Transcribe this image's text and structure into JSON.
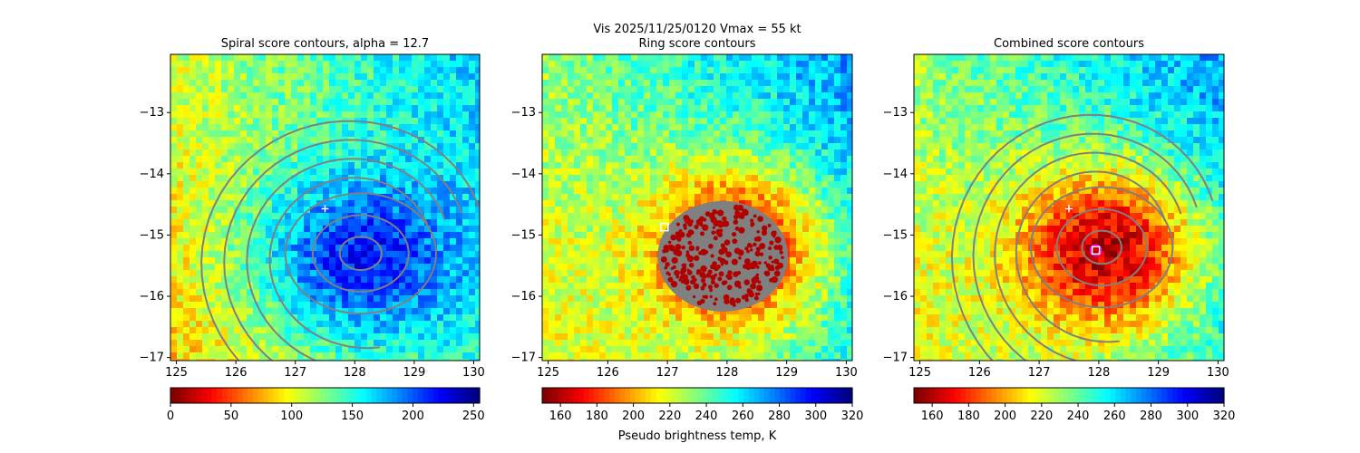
{
  "suptitle": "Vis  2025/11/25/0120    Vmax = 55 kt",
  "colorbar_label": "Pseudo brightness temp, K",
  "chart_data": [
    {
      "type": "heatmap",
      "title": "Spiral score contours, alpha = 12.7",
      "xlim": [
        124.9,
        130.1
      ],
      "ylim": [
        -17.05,
        -12.05
      ],
      "xticks": [
        "125",
        "126",
        "127",
        "128",
        "129",
        "130"
      ],
      "yticks": [
        "−13",
        "−14",
        "−15",
        "−16",
        "−17"
      ],
      "colormap": "jet_r",
      "background_level": 0.5,
      "center": [
        128.1,
        -15.3
      ],
      "storm_extent": [
        1.6,
        1.3
      ],
      "storm_level": 0.86,
      "grey_core": false,
      "contour_color": "#808080",
      "colorbar": {
        "ticks": [
          "0",
          "50",
          "100",
          "150",
          "200",
          "250"
        ],
        "range": [
          0,
          255
        ]
      },
      "markers": [
        {
          "kind": "plus",
          "x": 127.5,
          "y": -14.57,
          "color": "#ffffff"
        }
      ]
    },
    {
      "type": "heatmap",
      "title": "Ring score contours",
      "xlim": [
        124.9,
        130.1
      ],
      "ylim": [
        -17.05,
        -12.05
      ],
      "xticks": [
        "125",
        "126",
        "127",
        "128",
        "129",
        "130"
      ],
      "yticks": [
        "−13",
        "−14",
        "−15",
        "−16",
        "−17"
      ],
      "colormap": "jet_r",
      "background_level": 0.55,
      "center": [
        128.05,
        -15.2
      ],
      "storm_extent": [
        1.4,
        1.3
      ],
      "storm_level": 0.08,
      "grey_core": true,
      "grey_extent": [
        0.95,
        0.95
      ],
      "contour_color": "#808080",
      "colorbar": {
        "ticks": [
          "160",
          "180",
          "200",
          "220",
          "240",
          "260",
          "280",
          "300",
          "320"
        ],
        "range": [
          150,
          320
        ]
      },
      "markers": [
        {
          "kind": "square",
          "x": 126.95,
          "y": -14.87,
          "color": "#ffffff"
        }
      ]
    },
    {
      "type": "heatmap",
      "title": "Combined score contours",
      "xlim": [
        124.9,
        130.1
      ],
      "ylim": [
        -17.05,
        -12.05
      ],
      "xticks": [
        "125",
        "126",
        "127",
        "128",
        "129",
        "130"
      ],
      "yticks": [
        "−13",
        "−14",
        "−15",
        "−16",
        "−17"
      ],
      "colormap": "jet_r",
      "background_level": 0.55,
      "center": [
        128.05,
        -15.2
      ],
      "storm_extent": [
        1.5,
        1.3
      ],
      "storm_level": 0.06,
      "grey_core": false,
      "contour_color": "#808080",
      "colorbar": {
        "ticks": [
          "160",
          "180",
          "200",
          "220",
          "240",
          "260",
          "280",
          "300",
          "320"
        ],
        "range": [
          150,
          320
        ]
      },
      "markers": [
        {
          "kind": "plus",
          "x": 127.5,
          "y": -14.57,
          "color": "#ffffff"
        },
        {
          "kind": "circle",
          "x": 127.95,
          "y": -15.25,
          "color": "#ff00ff"
        },
        {
          "kind": "square",
          "x": 127.95,
          "y": -15.25,
          "color": "#ffffff"
        }
      ]
    }
  ]
}
